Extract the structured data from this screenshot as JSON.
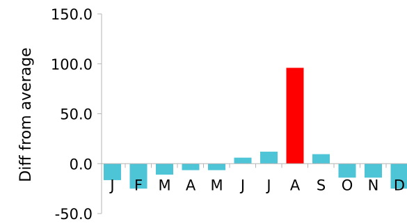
{
  "chart_data": {
    "type": "bar",
    "categories": [
      "J",
      "F",
      "M",
      "A",
      "M",
      "J",
      "J",
      "A",
      "S",
      "O",
      "N",
      "D"
    ],
    "values": [
      -16.5,
      -25.0,
      -11.0,
      -6.5,
      -6.5,
      6.0,
      12.0,
      96.0,
      9.5,
      -14.0,
      -14.0,
      -25.0
    ],
    "colors": [
      "#4dc5d6",
      "#4dc5d6",
      "#4dc5d6",
      "#4dc5d6",
      "#4dc5d6",
      "#4dc5d6",
      "#4dc5d6",
      "#ff0000",
      "#4dc5d6",
      "#4dc5d6",
      "#4dc5d6",
      "#4dc5d6"
    ],
    "ylabel": "Diff from average",
    "ylim": [
      -50,
      150
    ],
    "yticks": [
      "150.0",
      "100.0",
      "50.0",
      "0.0",
      "-50.0"
    ],
    "ytick_values": [
      150,
      100,
      50,
      0,
      -50
    ],
    "grid": false
  }
}
